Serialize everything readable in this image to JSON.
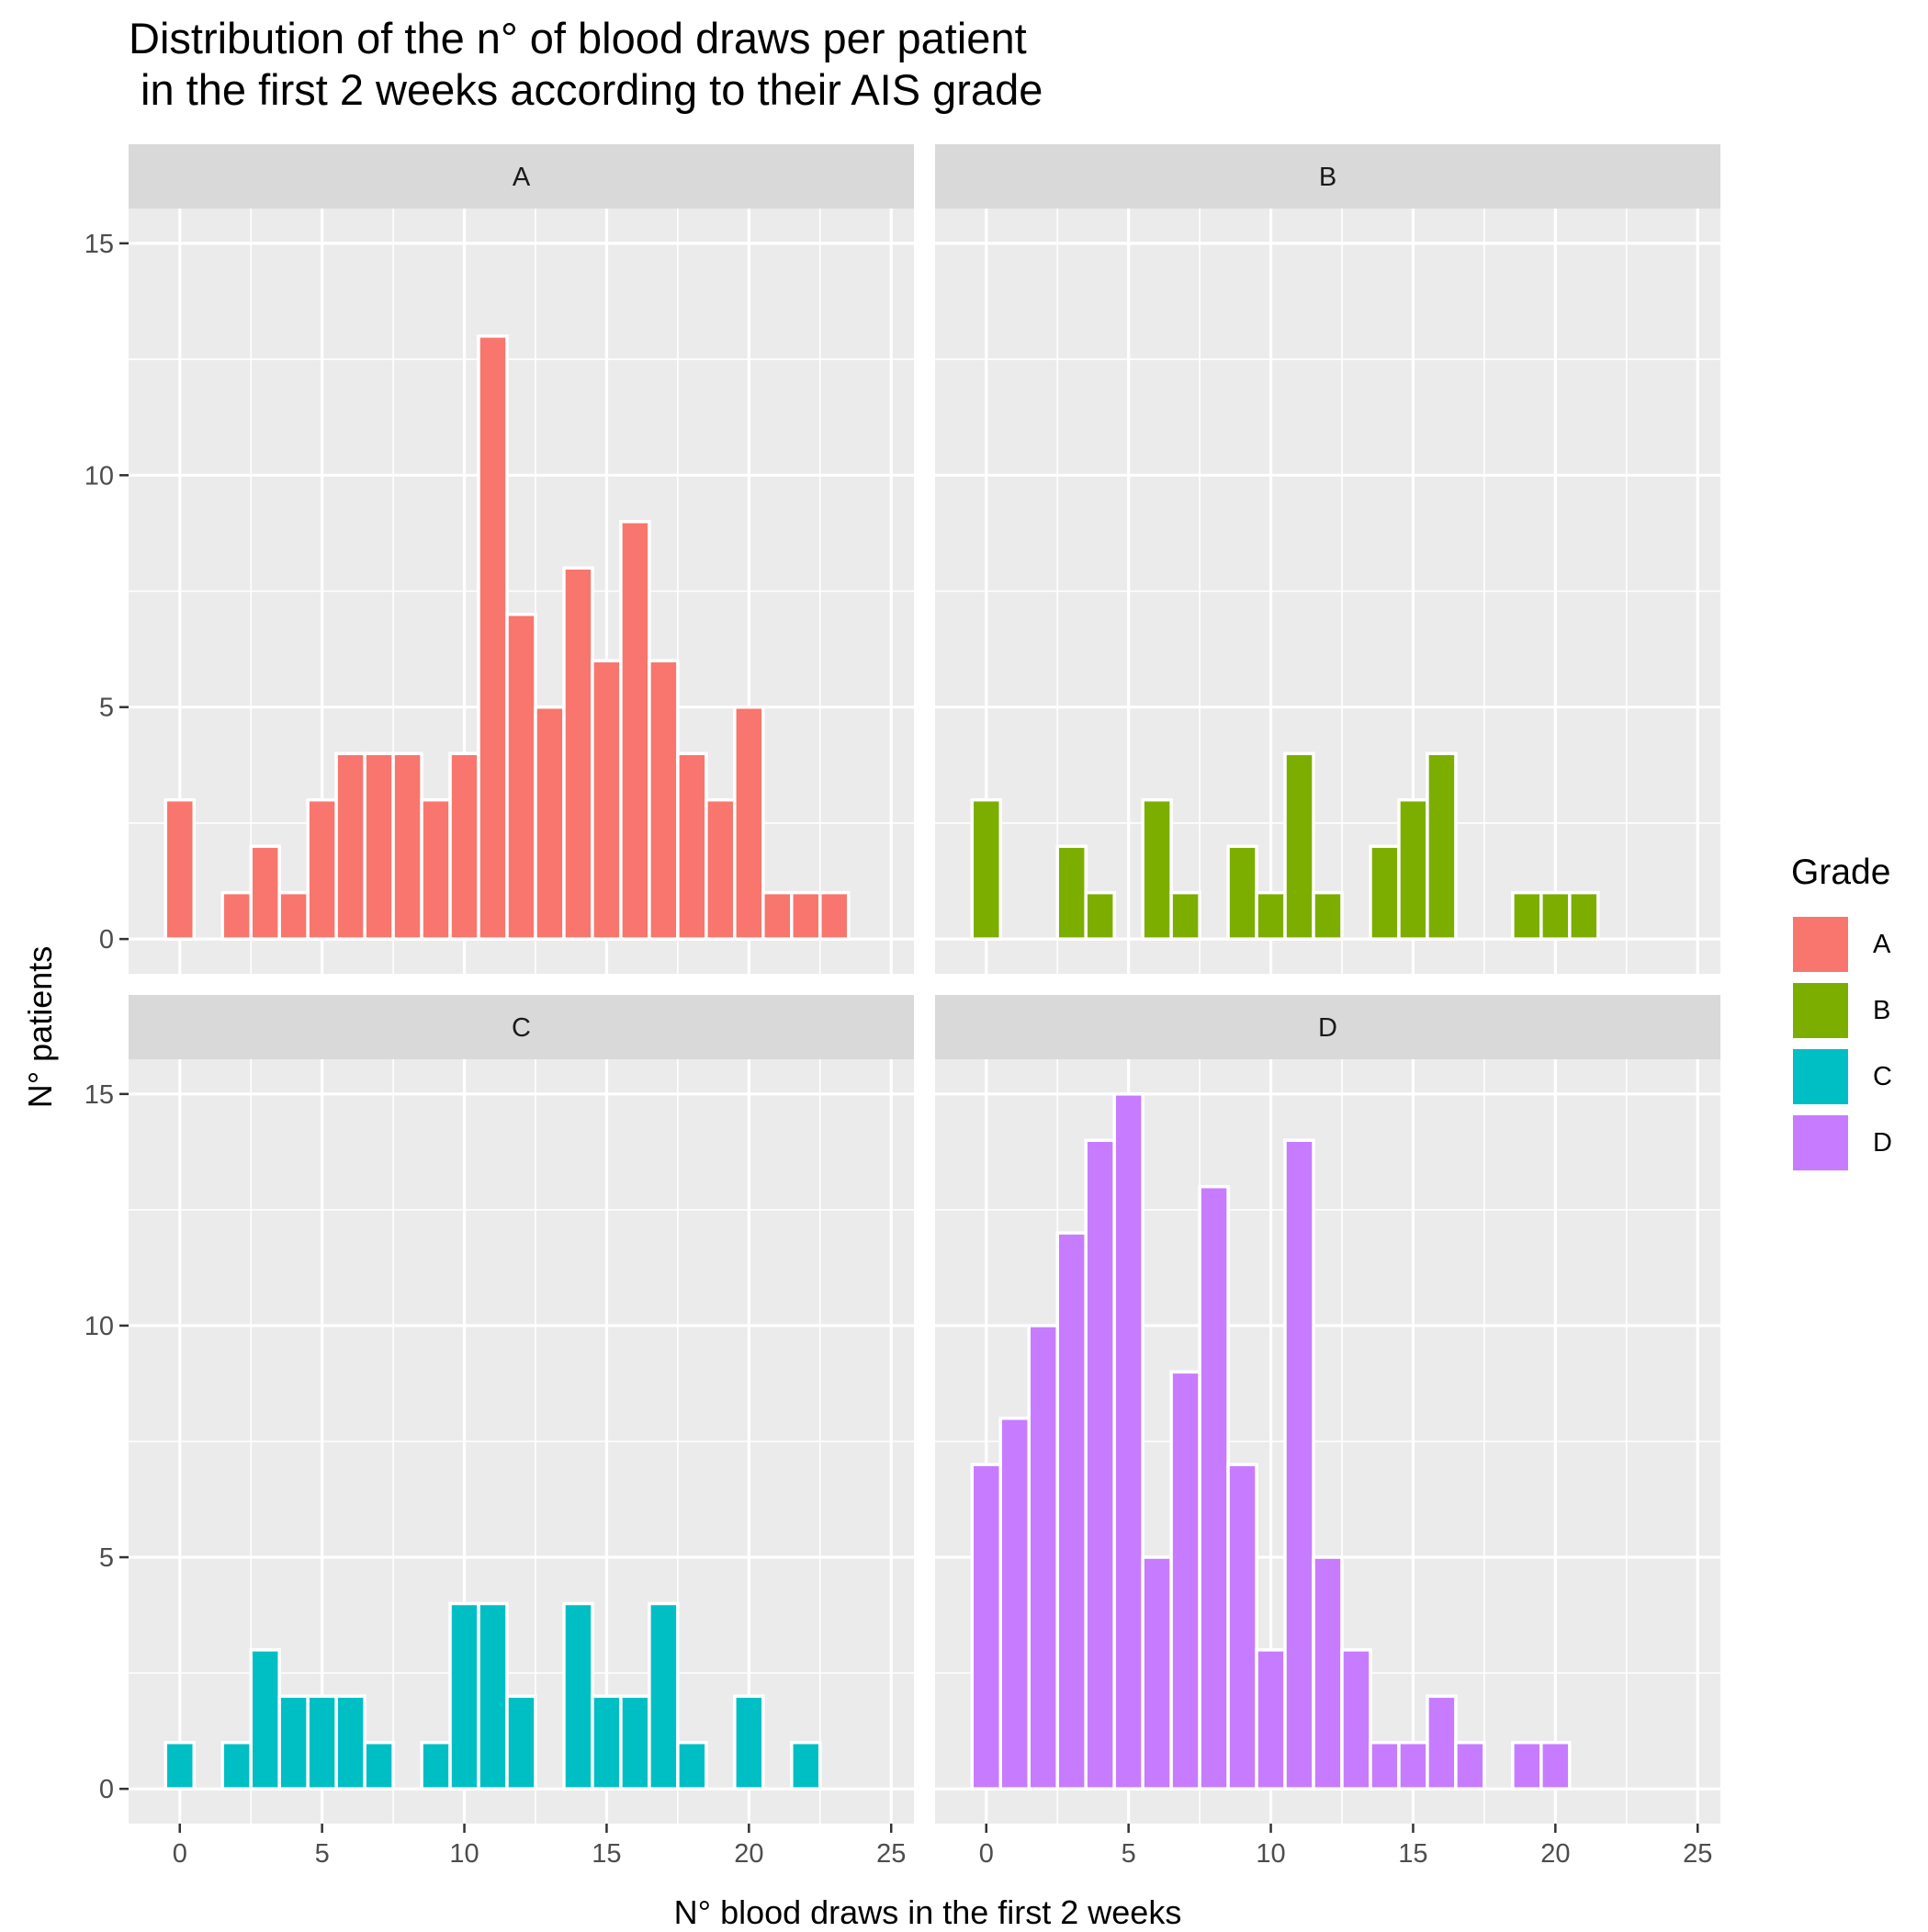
{
  "chart_data": {
    "type": "bar",
    "title": "Distribution of the n° of blood draws per patient\n in the first 2 weeks according to their AIS grade",
    "xlabel": "N° blood draws in the first 2 weeks",
    "ylabel": "N° patients",
    "xticks": [
      0,
      5,
      10,
      15,
      20,
      25
    ],
    "yticks": [
      0,
      5,
      10,
      15
    ],
    "xlim": [
      -1.8,
      25.8
    ],
    "ylim": [
      -0.75,
      15.75
    ],
    "grid": true,
    "legend": {
      "title": "Grade",
      "position": "right",
      "entries": [
        {
          "label": "A",
          "color": "#F8766D"
        },
        {
          "label": "B",
          "color": "#7CAE00"
        },
        {
          "label": "C",
          "color": "#00BFC4"
        },
        {
          "label": "D",
          "color": "#C77CFF"
        }
      ]
    },
    "panels": [
      {
        "name": "A",
        "color": "#F8766D",
        "counts": [
          3,
          0,
          1,
          2,
          1,
          3,
          4,
          4,
          4,
          3,
          4,
          13,
          7,
          5,
          8,
          6,
          9,
          6,
          4,
          3,
          5,
          1,
          1,
          1
        ]
      },
      {
        "name": "B",
        "color": "#7CAE00",
        "counts": [
          3,
          0,
          0,
          2,
          1,
          0,
          3,
          1,
          0,
          2,
          1,
          4,
          1,
          0,
          2,
          3,
          4,
          0,
          0,
          1,
          1,
          1
        ]
      },
      {
        "name": "C",
        "color": "#00BFC4",
        "counts": [
          1,
          0,
          1,
          3,
          2,
          2,
          2,
          1,
          0,
          1,
          4,
          4,
          2,
          0,
          4,
          2,
          2,
          4,
          1,
          0,
          2,
          0,
          1
        ]
      },
      {
        "name": "D",
        "color": "#C77CFF",
        "counts": [
          7,
          8,
          10,
          12,
          14,
          15,
          5,
          9,
          13,
          7,
          3,
          14,
          5,
          3,
          1,
          1,
          2,
          1,
          0,
          1,
          1
        ]
      }
    ]
  }
}
